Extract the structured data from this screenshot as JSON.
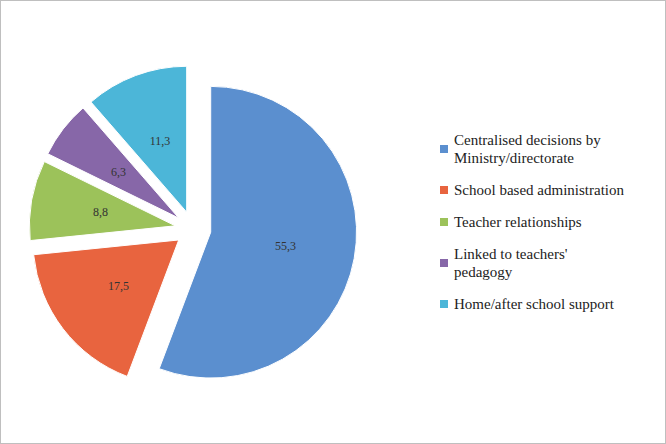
{
  "chart_data": {
    "type": "pie",
    "categories": [
      "Centralised decisions by Ministry/directorate",
      "School based administration",
      "Teacher relationships",
      "Linked to teachers' pedagogy",
      "Home/after school support"
    ],
    "values": [
      55.3,
      17.5,
      8.8,
      6.3,
      11.3
    ],
    "value_labels": [
      "55,3",
      "17,5",
      "8,8",
      "6,3",
      "11,3"
    ],
    "colors": [
      "#5b8fcf",
      "#e8643f",
      "#9cc25a",
      "#8767a8",
      "#4cb6d8"
    ],
    "data_labels": true,
    "legend": "right"
  }
}
